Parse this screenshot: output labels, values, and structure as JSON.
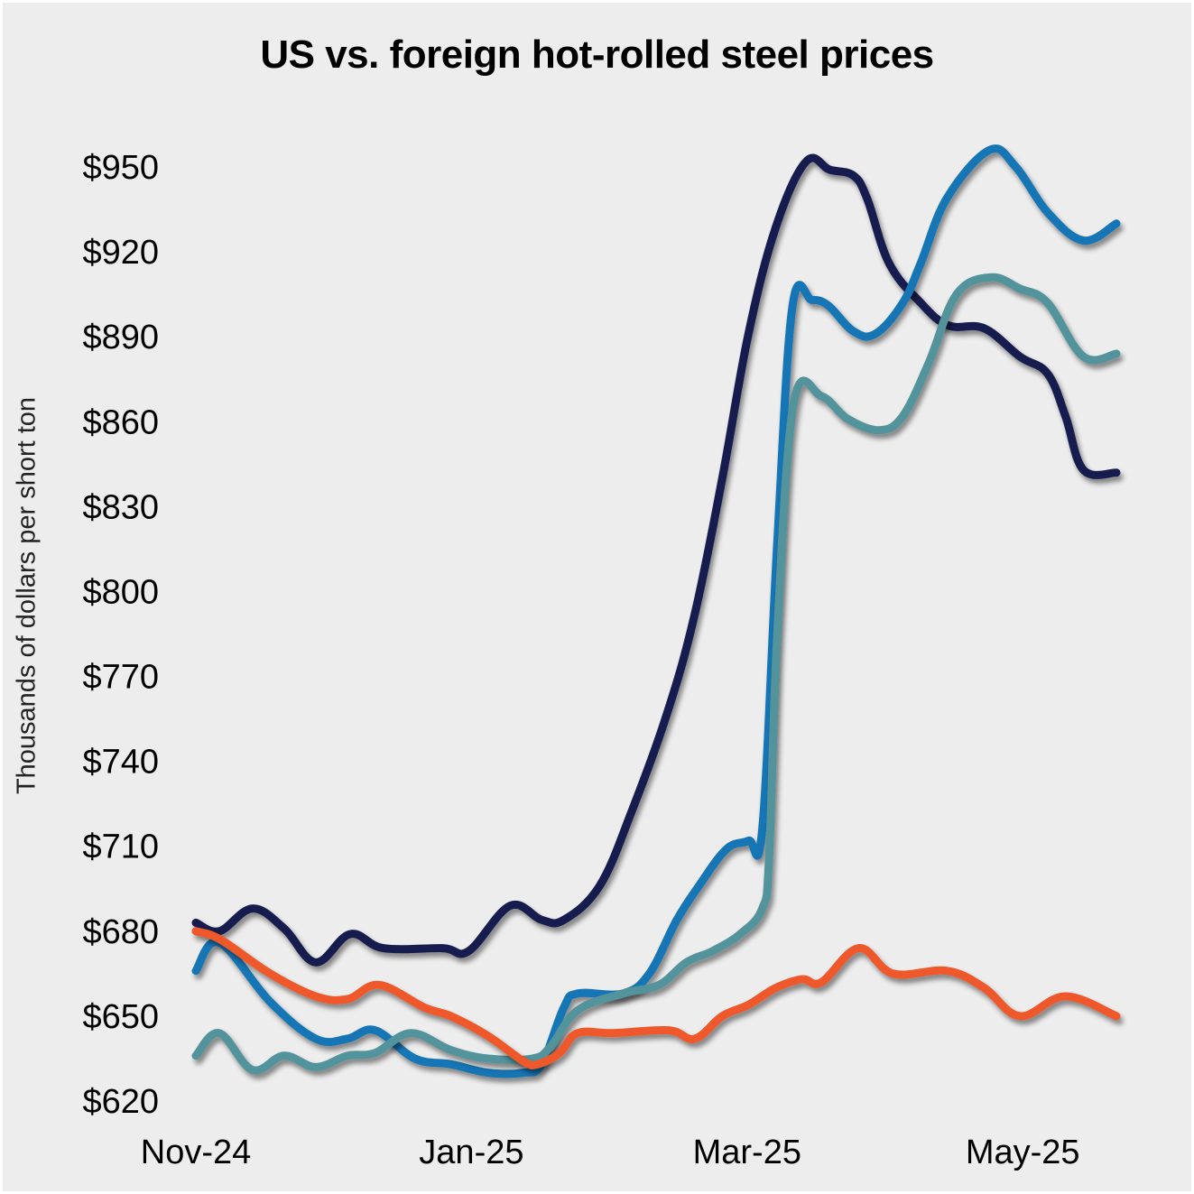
{
  "chart_data": {
    "type": "line",
    "title": "US vs. foreign hot-rolled steel prices",
    "xlabel": "",
    "ylabel": "Thousands of dollars per short ton",
    "x_unit": "months since Nov-24",
    "x_ticks": [
      {
        "label": "Nov-24",
        "x": 0
      },
      {
        "label": "Jan-25",
        "x": 2
      },
      {
        "label": "Mar-25",
        "x": 4
      },
      {
        "label": "May-25",
        "x": 6
      }
    ],
    "y_ticks": [
      "$620",
      "$650",
      "$680",
      "$710",
      "$740",
      "$770",
      "$800",
      "$830",
      "$860",
      "$890",
      "$920",
      "$950"
    ],
    "y_tick_values": [
      620,
      650,
      680,
      710,
      740,
      770,
      800,
      830,
      860,
      890,
      920,
      950
    ],
    "xlim": [
      0,
      6.68
    ],
    "ylim": [
      620,
      950
    ],
    "grid": false,
    "legend": "none",
    "series": [
      {
        "name": "navy",
        "color": "#151b4d",
        "points": [
          [
            0,
            683
          ],
          [
            0.17,
            680
          ],
          [
            0.41,
            688
          ],
          [
            0.64,
            681
          ],
          [
            0.87,
            669
          ],
          [
            1.12,
            679
          ],
          [
            1.36,
            674
          ],
          [
            1.79,
            674
          ],
          [
            1.98,
            673
          ],
          [
            2.28,
            689
          ],
          [
            2.51,
            684
          ],
          [
            2.67,
            684
          ],
          [
            2.93,
            696
          ],
          [
            3.16,
            722
          ],
          [
            3.42,
            757
          ],
          [
            3.62,
            792
          ],
          [
            3.82,
            840
          ],
          [
            4.01,
            891
          ],
          [
            4.21,
            929
          ],
          [
            4.43,
            952
          ],
          [
            4.6,
            949
          ],
          [
            4.77,
            947
          ],
          [
            4.87,
            939
          ],
          [
            5.03,
            916
          ],
          [
            5.26,
            902
          ],
          [
            5.46,
            894
          ],
          [
            5.72,
            893
          ],
          [
            5.98,
            883
          ],
          [
            6.18,
            877
          ],
          [
            6.31,
            862
          ],
          [
            6.44,
            843
          ],
          [
            6.68,
            842
          ]
        ]
      },
      {
        "name": "blue",
        "color": "#1275b4",
        "points": [
          [
            0,
            666
          ],
          [
            0.17,
            676
          ],
          [
            0.54,
            655
          ],
          [
            0.87,
            642
          ],
          [
            1.1,
            642
          ],
          [
            1.3,
            645
          ],
          [
            1.59,
            635
          ],
          [
            1.85,
            633
          ],
          [
            2.12,
            630
          ],
          [
            2.38,
            630
          ],
          [
            2.51,
            633
          ],
          [
            2.67,
            653
          ],
          [
            2.77,
            658
          ],
          [
            3.1,
            658
          ],
          [
            3.29,
            665
          ],
          [
            3.49,
            684
          ],
          [
            3.65,
            696
          ],
          [
            3.85,
            709
          ],
          [
            4.01,
            712
          ],
          [
            4.11,
            716
          ],
          [
            4.22,
            818
          ],
          [
            4.33,
            901
          ],
          [
            4.47,
            903
          ],
          [
            4.59,
            901
          ],
          [
            4.77,
            892
          ],
          [
            4.93,
            891
          ],
          [
            5.13,
            902
          ],
          [
            5.26,
            916
          ],
          [
            5.45,
            939
          ],
          [
            5.76,
            956
          ],
          [
            5.95,
            950
          ],
          [
            6.18,
            934
          ],
          [
            6.44,
            924
          ],
          [
            6.68,
            930
          ]
        ]
      },
      {
        "name": "teal",
        "color": "#52939b",
        "points": [
          [
            0,
            636
          ],
          [
            0.17,
            644
          ],
          [
            0.41,
            631
          ],
          [
            0.64,
            636
          ],
          [
            0.87,
            632
          ],
          [
            1.1,
            636
          ],
          [
            1.3,
            637
          ],
          [
            1.56,
            644
          ],
          [
            1.85,
            638
          ],
          [
            2.12,
            635
          ],
          [
            2.44,
            635
          ],
          [
            2.57,
            639
          ],
          [
            2.77,
            652
          ],
          [
            3.1,
            658
          ],
          [
            3.36,
            661
          ],
          [
            3.56,
            669
          ],
          [
            3.75,
            673
          ],
          [
            3.95,
            679
          ],
          [
            4.11,
            688
          ],
          [
            4.16,
            706
          ],
          [
            4.22,
            786
          ],
          [
            4.34,
            867
          ],
          [
            4.54,
            869
          ],
          [
            4.73,
            861
          ],
          [
            4.96,
            857
          ],
          [
            5.13,
            862
          ],
          [
            5.32,
            881
          ],
          [
            5.52,
            905
          ],
          [
            5.77,
            911
          ],
          [
            5.98,
            907
          ],
          [
            6.18,
            902
          ],
          [
            6.44,
            883
          ],
          [
            6.68,
            884
          ]
        ]
      },
      {
        "name": "orange",
        "color": "#ee582a",
        "points": [
          [
            0,
            680
          ],
          [
            0.18,
            677
          ],
          [
            0.54,
            665
          ],
          [
            0.87,
            657
          ],
          [
            1.1,
            656
          ],
          [
            1.33,
            661
          ],
          [
            1.66,
            653
          ],
          [
            1.85,
            650
          ],
          [
            2.12,
            643
          ],
          [
            2.38,
            634
          ],
          [
            2.48,
            633
          ],
          [
            2.64,
            637
          ],
          [
            2.77,
            644
          ],
          [
            3.03,
            644
          ],
          [
            3.43,
            645
          ],
          [
            3.62,
            642
          ],
          [
            3.82,
            650
          ],
          [
            4.01,
            654
          ],
          [
            4.21,
            660
          ],
          [
            4.4,
            663
          ],
          [
            4.54,
            662
          ],
          [
            4.81,
            674
          ],
          [
            5.06,
            665
          ],
          [
            5.45,
            666
          ],
          [
            5.72,
            660
          ],
          [
            5.98,
            650
          ],
          [
            6.31,
            657
          ],
          [
            6.68,
            650
          ]
        ]
      }
    ]
  }
}
